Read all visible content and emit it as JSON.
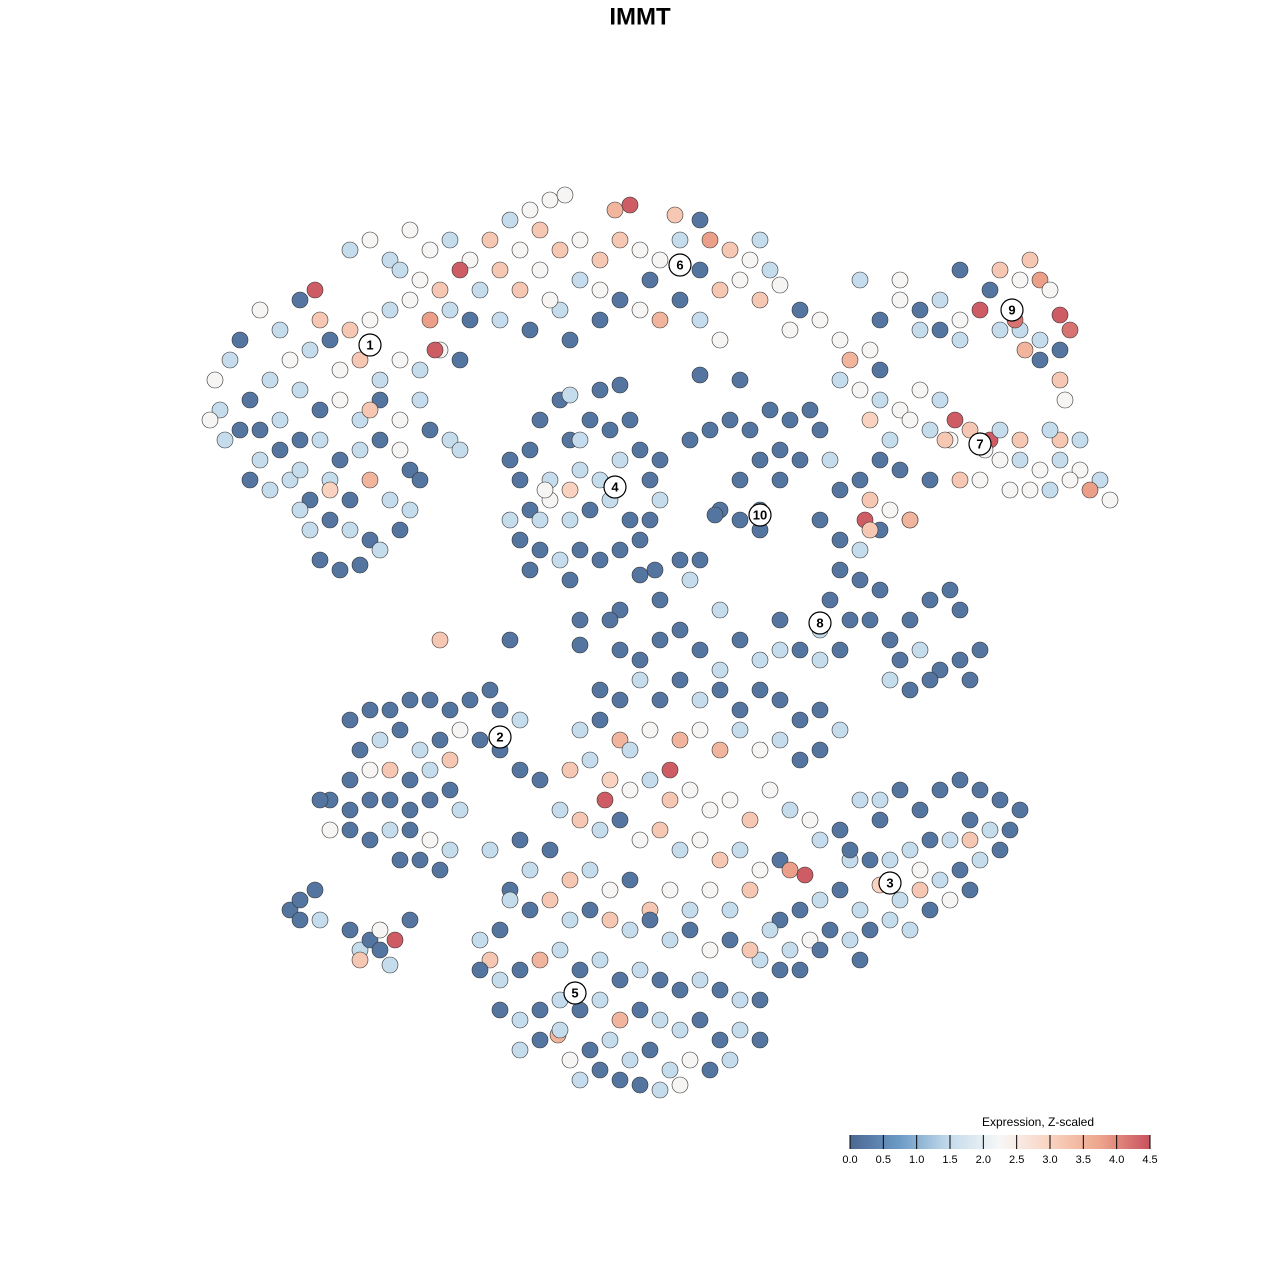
{
  "chart_data": {
    "type": "scatter",
    "title": "IMMT",
    "xlim": [
      20,
      113
    ],
    "ylim": [
      19,
      110
    ],
    "x": [
      22,
      21.5,
      23,
      24,
      26,
      28,
      30,
      32,
      25,
      27,
      29,
      31,
      33,
      35,
      37,
      39,
      41,
      43,
      45,
      31.5,
      34,
      36,
      38,
      40,
      42,
      44,
      46,
      43.5,
      30,
      32,
      34,
      36,
      38,
      40,
      42,
      26,
      28,
      30,
      32,
      34,
      36,
      38,
      40,
      37,
      33,
      31,
      29,
      35,
      37,
      39,
      41,
      31,
      33,
      35,
      37,
      32,
      34,
      36,
      38,
      33,
      30,
      28,
      24,
      22.5,
      21,
      26,
      25,
      27,
      30,
      40,
      41,
      43,
      45,
      42,
      46,
      35,
      37,
      39,
      41,
      43,
      45,
      47,
      49,
      51,
      53,
      55,
      56.5,
      54,
      52,
      50,
      48,
      46,
      44,
      42,
      40,
      52,
      54,
      56,
      58,
      60,
      61.5,
      63,
      62,
      64,
      66,
      67.5,
      68,
      70,
      72,
      73,
      75,
      77,
      74,
      76,
      78,
      80,
      82,
      79,
      84,
      60,
      58,
      56,
      62,
      64,
      66,
      68,
      70,
      72,
      57,
      60,
      50,
      53,
      47,
      55,
      70,
      71,
      76,
      65,
      51,
      52,
      53,
      54,
      56,
      57,
      58,
      59,
      60,
      61,
      62,
      63,
      64,
      65,
      66,
      63,
      61,
      59,
      57,
      55,
      53,
      51,
      52,
      54,
      56,
      58,
      60,
      62,
      64,
      55,
      57,
      60,
      54.5,
      58,
      53,
      57,
      54,
      65,
      66,
      69,
      71,
      73,
      75,
      77,
      79,
      81,
      82,
      76,
      78,
      80,
      74,
      76,
      74,
      76,
      72,
      71.5,
      68,
      69,
      78,
      83,
      84,
      86,
      88,
      90,
      92,
      94,
      95.5,
      93,
      91,
      87,
      89,
      95,
      97,
      99,
      100,
      102,
      98.5,
      100,
      102,
      104,
      106,
      108,
      110,
      111,
      109,
      107,
      105,
      103,
      101,
      98,
      96,
      94.5,
      88,
      86,
      84,
      90,
      93,
      87,
      89,
      91,
      86.5,
      106,
      105,
      108,
      85,
      87,
      88,
      88,
      90,
      92,
      94,
      96,
      98,
      99,
      100,
      102,
      103,
      104,
      105,
      106,
      107,
      106,
      104,
      102,
      101.5,
      100,
      102.5,
      94,
      96,
      92,
      90,
      96,
      104,
      106,
      106.5,
      86,
      82,
      84,
      86,
      88,
      84,
      86,
      88,
      83,
      85,
      87,
      89,
      91,
      93,
      95,
      96,
      90,
      92,
      94,
      96,
      98,
      89,
      91,
      93,
      97,
      82,
      78,
      80,
      84,
      87,
      91,
      82,
      62,
      64,
      66,
      68,
      70,
      72,
      74,
      76,
      78,
      60,
      62,
      64,
      66,
      68,
      70,
      72,
      74,
      76,
      78,
      80,
      82,
      84,
      58,
      60,
      62,
      63,
      65,
      67,
      68,
      70,
      72,
      74,
      76,
      78,
      80,
      82,
      57,
      59,
      60.5,
      61,
      63,
      65,
      67,
      69,
      71,
      73,
      75,
      77,
      79,
      81,
      56,
      58,
      60,
      62,
      64,
      66,
      68,
      70,
      72,
      74,
      76,
      78,
      79,
      80.5,
      82,
      84,
      85,
      55,
      57,
      59,
      61,
      63,
      65,
      67,
      69,
      71,
      73,
      75,
      52,
      53,
      51,
      62,
      66,
      58,
      64,
      70,
      72,
      86,
      88,
      90,
      92,
      94,
      96,
      98,
      100,
      102,
      101,
      99,
      97,
      95,
      93,
      91,
      89,
      87,
      85,
      97,
      98,
      96,
      94,
      92,
      90,
      88,
      86,
      84,
      82,
      80,
      78,
      79,
      81,
      83,
      85,
      87,
      89,
      91,
      93,
      95,
      92,
      78,
      80,
      82,
      86,
      76,
      97,
      100,
      88,
      35,
      37,
      39,
      41,
      43,
      45,
      47,
      49,
      50,
      52,
      36,
      38,
      40,
      42,
      44,
      46,
      48,
      39,
      37,
      35,
      41,
      43,
      45,
      50,
      52,
      54,
      33,
      35,
      37,
      39,
      41,
      43,
      45,
      46,
      33,
      35,
      37,
      39,
      41,
      43,
      45,
      40,
      42,
      44,
      49,
      32,
      29,
      30,
      31.5,
      30,
      32,
      35,
      36,
      37,
      38,
      39.5,
      36,
      39,
      41,
      38,
      48,
      49,
      50,
      51,
      53,
      55,
      57,
      59,
      61,
      63,
      65,
      67,
      69,
      71,
      73,
      75,
      77,
      48,
      50,
      52,
      54,
      56,
      58,
      60,
      62,
      64,
      66,
      68,
      70,
      72,
      74,
      76,
      50,
      52,
      54,
      56,
      58,
      60,
      62,
      64,
      66,
      68,
      70,
      72,
      74,
      76,
      52,
      54,
      55.8,
      57,
      59,
      61,
      63,
      65,
      67,
      69,
      71,
      73,
      58,
      60,
      62,
      64,
      66,
      68,
      56,
      44,
      51,
      58,
      65.5,
      61,
      74,
      70,
      62,
      57
    ],
    "y": [
      87,
      90,
      92,
      94,
      97,
      95,
      98,
      96,
      88,
      90,
      92,
      93,
      94,
      95,
      96,
      97,
      98,
      96,
      97,
      99,
      91,
      92,
      90,
      92,
      91,
      93,
      92,
      93,
      89,
      87,
      88,
      86,
      88,
      86,
      88,
      85,
      86,
      84,
      84,
      82,
      83,
      84,
      83,
      87,
      80,
      78,
      80,
      78,
      80,
      78,
      81,
      75,
      76,
      75,
      74,
      72,
      71,
      71.5,
      73,
      79,
      81,
      83,
      85,
      84,
      86,
      82,
      80,
      79,
      77,
      75,
      77,
      85,
      84,
      80,
      83,
      103,
      104,
      102,
      105,
      103,
      104,
      102,
      104,
      106,
      107,
      108,
      108.5,
      105,
      103,
      101,
      99,
      101,
      99,
      100,
      101,
      99,
      101,
      103,
      104,
      102,
      107,
      107.5,
      104,
      103,
      102,
      106.5,
      104,
      101,
      99,
      103,
      102,
      101,
      100,
      98,
      99.5,
      97,
      96,
      95,
      94,
      99,
      100,
      97,
      98,
      97,
      96,
      98,
      96,
      94,
      94,
      96,
      96,
      95,
      96,
      98,
      106,
      104,
      104,
      100,
      82,
      80,
      83,
      86,
      88,
      84,
      81,
      86,
      89,
      85,
      82,
      86,
      83,
      80,
      78,
      76,
      78,
      77,
      76,
      78,
      77,
      76,
      74,
      73,
      72,
      73,
      72,
      73,
      74,
      80,
      79,
      80,
      79,
      84,
      71,
      70,
      76,
      76,
      82,
      84,
      85,
      86,
      85,
      87,
      86,
      87,
      85,
      82,
      83,
      82,
      80,
      77,
      76,
      75,
      77,
      76.5,
      72,
      70,
      80,
      82,
      90,
      89,
      88,
      87,
      89,
      88,
      86,
      85,
      86,
      86,
      84,
      84,
      85,
      84,
      85,
      84,
      83,
      82,
      82,
      81,
      82,
      81,
      80,
      78,
      79,
      80,
      79,
      79,
      79,
      80,
      80,
      84,
      82,
      80,
      79,
      81,
      80,
      78,
      77,
      76,
      76,
      84,
      85,
      84,
      92,
      93,
      91,
      96,
      98,
      97,
      98,
      96,
      97,
      99,
      101,
      100,
      102,
      100,
      99,
      96.5,
      95,
      93,
      94,
      95,
      96,
      95,
      93,
      95,
      94,
      95,
      100,
      101,
      92,
      90,
      88,
      100,
      76,
      74,
      73,
      75,
      71,
      70,
      69,
      68,
      66,
      66,
      64,
      66,
      68,
      69,
      67,
      62,
      63,
      61,
      62,
      63,
      60,
      59,
      60,
      60,
      65,
      66,
      63,
      63,
      75,
      76,
      62,
      63,
      62,
      64,
      65,
      63,
      61,
      64,
      62,
      63,
      59,
      58,
      60,
      58,
      60,
      58,
      59,
      57,
      59,
      58,
      56,
      57,
      55,
      55,
      56,
      54,
      53,
      55,
      51,
      54,
      55,
      53,
      55,
      53,
      54,
      52,
      53,
      51,
      52,
      48,
      50,
      49,
      50,
      48,
      49,
      47,
      48,
      46,
      49,
      47,
      46,
      47,
      46,
      45,
      46,
      44,
      45,
      43,
      44,
      42,
      43,
      41,
      42,
      41,
      40.5,
      44,
      45,
      42,
      43,
      40,
      41,
      39,
      40,
      37,
      39,
      37,
      39,
      37,
      39,
      44,
      41,
      39,
      67,
      68,
      66,
      70.5,
      72,
      67,
      48,
      46,
      49,
      47,
      49,
      50,
      49,
      48,
      47,
      45,
      45,
      46,
      44,
      44,
      43,
      42,
      42,
      43,
      44,
      42,
      41,
      40,
      39,
      38,
      39.5,
      37,
      39,
      38,
      37,
      36,
      33,
      34,
      35,
      34,
      35,
      36,
      35,
      37,
      38,
      41,
      31,
      31,
      33,
      32,
      32,
      39,
      43,
      48,
      56,
      57,
      57,
      58,
      58,
      57,
      58,
      59,
      57,
      56,
      53,
      54,
      55,
      53,
      54,
      55,
      54,
      51,
      51,
      50,
      50,
      51,
      52,
      53,
      51,
      50,
      48,
      47,
      48,
      48,
      47,
      48,
      49,
      47,
      45,
      45,
      44,
      45,
      45,
      44,
      43,
      42,
      42,
      41,
      43,
      48,
      37,
      38,
      39,
      36,
      36,
      35,
      33,
      34,
      35,
      34,
      32,
      31.5,
      36,
      33,
      34,
      32,
      35,
      38,
      37,
      38,
      36,
      37,
      36,
      35,
      36,
      34,
      35,
      33,
      34,
      33,
      35,
      31,
      30,
      31,
      32,
      33,
      31,
      32,
      30,
      31,
      30,
      29,
      30,
      29,
      28,
      28,
      27,
      26,
      27,
      28,
      27,
      28,
      26,
      27,
      26,
      25,
      26,
      24,
      25,
      24,
      23,
      24,
      24.5,
      22,
      23,
      24,
      22,
      23,
      21,
      22,
      21,
      22,
      20,
      21,
      20,
      19.5,
      19,
      19.5,
      25,
      64,
      64,
      63.5,
      71,
      66,
      90,
      90.5,
      89.5,
      88.5
    ],
    "values": [
      1.5,
      2.3,
      1.5,
      0.2,
      2.3,
      1.5,
      0.2,
      3.2,
      0.2,
      1.5,
      2.3,
      1.5,
      0.2,
      3.2,
      2.3,
      1.5,
      2.3,
      3.8,
      1.5,
      4.4,
      2.3,
      3.2,
      1.5,
      2.3,
      1.5,
      2.3,
      0.2,
      4.4,
      1.5,
      0.2,
      2.3,
      1.5,
      0.2,
      2.3,
      1.5,
      0.2,
      1.5,
      0.2,
      1.5,
      0.2,
      1.5,
      0.2,
      2.3,
      3.2,
      1.5,
      0.2,
      1.5,
      0.2,
      3.5,
      1.5,
      0.2,
      1.5,
      0.2,
      1.5,
      0.2,
      0.2,
      0.2,
      0.2,
      1.5,
      3.0,
      1.5,
      0.2,
      0.2,
      1.5,
      2.3,
      1.5,
      0.2,
      1.5,
      1.5,
      0.2,
      1.5,
      0.2,
      1.5,
      0.2,
      1.5,
      1.5,
      2.3,
      1.5,
      2.3,
      2.3,
      1.5,
      2.3,
      3.2,
      1.5,
      2.3,
      2.3,
      2.3,
      3.2,
      2.3,
      3.2,
      1.5,
      4.4,
      3.2,
      2.3,
      1.5,
      3.2,
      2.3,
      3.2,
      2.3,
      3.2,
      3.5,
      4.4,
      3.2,
      2.3,
      2.3,
      3.2,
      1.5,
      0.2,
      3.2,
      3.2,
      2.3,
      1.5,
      2.3,
      3.2,
      2.3,
      0.2,
      2.3,
      2.3,
      2.3,
      2.3,
      1.5,
      1.5,
      0.2,
      2.3,
      3.5,
      0.2,
      1.5,
      2.3,
      0.2,
      0.2,
      1.5,
      0.2,
      0.2,
      2.3,
      0.2,
      3.8,
      1.5,
      0.2,
      0.2,
      0.2,
      0.2,
      0.2,
      0.2,
      0.2,
      1.5,
      0.2,
      0.2,
      0.2,
      1.5,
      0.2,
      0.2,
      0.2,
      1.5,
      0.2,
      1.5,
      0.2,
      1.5,
      2.3,
      0.2,
      1.5,
      0.2,
      0.2,
      1.5,
      0.2,
      0.2,
      0.2,
      0.2,
      1.5,
      3.0,
      1.5,
      2.3,
      1.5,
      0.2,
      0.2,
      1.5,
      0.2,
      0.2,
      0.2,
      0.2,
      0.2,
      0.2,
      0.2,
      0.2,
      0.2,
      0.2,
      0.2,
      0.2,
      0.2,
      0.2,
      0.2,
      0.2,
      0.2,
      0.2,
      0.2,
      0.2,
      1.5,
      0.2,
      1.5,
      1.5,
      2.3,
      1.5,
      2.3,
      2.3,
      1.5,
      4.4,
      1.5,
      2.3,
      3.0,
      1.5,
      2.3,
      3.2,
      4.4,
      1.5,
      3.2,
      2.3,
      2.3,
      1.5,
      2.3,
      1.5,
      2.3,
      1.5,
      2.3,
      3.8,
      2.3,
      1.5,
      2.3,
      2.3,
      2.3,
      3.2,
      3.2,
      0.2,
      0.2,
      0.2,
      0.2,
      0.2,
      3.2,
      2.3,
      3.2,
      4.4,
      3.2,
      1.5,
      1.5,
      3.5,
      2.3,
      0.2,
      0.2,
      2.3,
      0.2,
      1.5,
      2.3,
      4.4,
      0.2,
      3.2,
      2.3,
      3.2,
      3.8,
      2.3,
      4.4,
      4.2,
      0.2,
      1.5,
      1.5,
      4.2,
      1.5,
      3.5,
      0.2,
      1.5,
      1.5,
      2.3,
      0.2,
      0.2,
      3.2,
      2.3,
      1.5,
      0.2,
      0.2,
      1.5,
      0.2,
      0.2,
      0.2,
      0.2,
      0.2,
      0.2,
      0.2,
      0.2,
      0.2,
      0.2,
      0.2,
      0.2,
      0.2,
      1.5,
      0.2,
      0.2,
      0.2,
      1.5,
      0.2,
      0.2,
      0.2,
      1.5,
      0.2,
      0.2,
      0.2,
      3.2,
      3.5,
      1.5,
      0.2,
      0.2,
      0.2,
      0.2,
      0.2,
      1.5,
      0.2,
      1.5,
      1.5,
      0.2,
      0.2,
      1.5,
      0.2,
      0.2,
      1.5,
      0.2,
      0.2,
      0.2,
      0.2,
      0.2,
      0.2,
      1.5,
      1.5,
      0.2,
      3.5,
      1.5,
      2.3,
      4.4,
      3.5,
      2.3,
      3.5,
      1.5,
      2.3,
      1.5,
      0.2,
      0.2,
      3.2,
      1.5,
      4.4,
      3.0,
      2.3,
      1.5,
      3.2,
      2.3,
      2.3,
      2.3,
      3.2,
      2.3,
      1.5,
      2.3,
      1.5,
      3.2,
      1.5,
      0.2,
      2.3,
      3.2,
      1.5,
      2.3,
      3.2,
      1.5,
      2.3,
      0.2,
      3.8,
      4.4,
      1.5,
      0.2,
      1.5,
      0.2,
      3.2,
      1.5,
      2.3,
      0.2,
      3.2,
      2.3,
      1.5,
      2.3,
      1.5,
      3.2,
      0.2,
      1.5,
      0.2,
      0.2,
      0.2,
      0.2,
      0.2,
      0.2,
      1.5,
      1.5,
      0.2,
      0.2,
      0.2,
      0.2,
      0.2,
      0.2,
      0.2,
      0.2,
      0.2,
      1.5,
      0.2,
      1.5,
      0.2,
      1.5,
      1.5,
      0.2,
      0.2,
      3.2,
      1.5,
      0.2,
      1.5,
      3.2,
      1.5,
      3.0,
      1.5,
      0.2,
      1.5,
      0.2,
      0.2,
      1.5,
      2.3,
      0.2,
      1.5,
      0.2,
      1.5,
      1.5,
      0.2,
      2.3,
      2.3,
      0.2,
      0.2,
      0.2,
      0.2,
      1.5,
      0.2,
      0.2,
      1.5,
      0.2,
      0.2,
      0.2,
      0.2,
      0.2,
      0.2,
      0.2,
      0.2,
      0.2,
      1.5,
      0.2,
      1.5,
      0.2,
      1.5,
      0.2,
      2.3,
      0.2,
      3.2,
      2.3,
      0.2,
      0.2,
      1.5,
      3.2,
      0.2,
      0.2,
      0.2,
      0.2,
      0.2,
      0.2,
      0.2,
      0.2,
      0.2,
      0.2,
      1.5,
      2.3,
      0.2,
      0.2,
      1.5,
      0.2,
      2.3,
      1.5,
      0.2,
      0.2,
      0.2,
      1.5,
      0.2,
      0.2,
      0.2,
      0.2,
      0.2,
      1.5,
      0.2,
      1.5,
      0.2,
      2.3,
      4.4,
      3.2,
      1.5,
      0.2,
      0.2,
      1.5,
      3.2,
      0.2,
      1.5,
      0.2,
      3.2,
      1.5,
      0.2,
      3.2,
      1.5,
      0.2,
      1.5,
      0.2,
      2.3,
      0.2,
      3.2,
      1.5,
      0.2,
      1.5,
      0.2,
      3.5,
      1.5,
      0.2,
      1.5,
      0.2,
      1.5,
      0.2,
      0.2,
      1.5,
      0.2,
      1.5,
      0.2,
      0.2,
      1.5,
      0.2,
      1.5,
      0.2,
      1.5,
      3.5,
      0.2,
      1.5,
      1.5,
      0.2,
      0.2,
      1.5,
      0.2,
      1.5,
      0.2,
      3.5,
      2.3,
      0.2,
      1.5,
      1.5,
      0.2,
      1.5,
      2.3,
      0.2,
      1.5,
      1.5,
      0.2,
      0.2,
      0.2,
      1.5,
      2.3,
      1.5,
      3.2,
      0.2,
      0.2,
      0.2,
      0.2,
      0.2,
      0.2,
      0.2,
      1.5
    ],
    "clusters": {
      "labels": [
        "1",
        "2",
        "3",
        "4",
        "5",
        "6",
        "7",
        "8",
        "9",
        "10"
      ],
      "x": [
        37,
        50,
        89,
        61.5,
        57.5,
        68,
        98,
        82,
        101.2,
        76
      ],
      "y": [
        93.5,
        54.3,
        39.7,
        79.3,
        28.7,
        101.5,
        83.6,
        65.7,
        97,
        76.5
      ]
    },
    "colorbar": {
      "title": "Expression, Z-scaled",
      "clim": [
        0,
        4.5
      ],
      "colors": [
        "#4a6791",
        "#6c9bc7",
        "#c5dcec",
        "#f7f7f7",
        "#f9d3c0",
        "#eda58c",
        "#c9515e"
      ],
      "ticks": [
        {
          "value": 0,
          "label": "0.0"
        },
        0.5,
        {
          "value": 1,
          "label": "1.0"
        },
        1.5,
        {
          "value": 2,
          "label": "2.0"
        },
        2.5,
        {
          "value": 3,
          "label": "3.0"
        },
        3.5,
        {
          "value": 4,
          "label": "4.0"
        },
        4.5
      ]
    }
  }
}
